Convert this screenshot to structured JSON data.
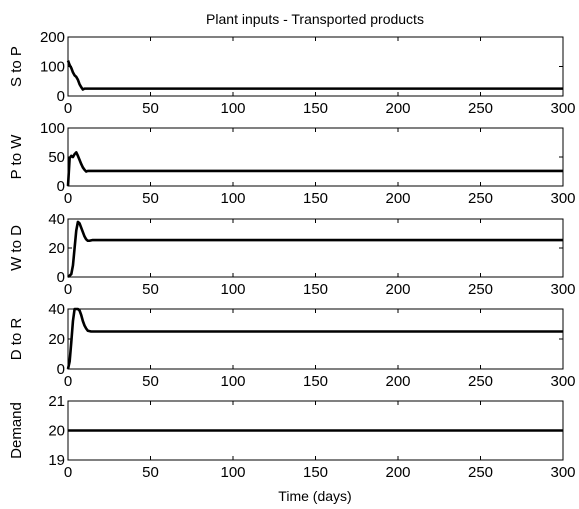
{
  "figure": {
    "title": "Plant inputs - Transported products",
    "xlabel": "Time (days)"
  },
  "chart_data": [
    {
      "type": "line",
      "title": "Plant inputs - Transported products",
      "xlabel": "",
      "ylabel": "S to P",
      "xlim": [
        0,
        300
      ],
      "ylim": [
        0,
        200
      ],
      "xticks": [
        0,
        50,
        100,
        150,
        200,
        250,
        300
      ],
      "yticks": [
        0,
        100,
        200
      ],
      "grid": false,
      "series": [
        {
          "x": [
            0,
            1,
            2,
            3,
            4,
            5,
            6,
            7,
            8,
            9,
            10,
            12,
            15,
            20,
            300
          ],
          "y": [
            120,
            105,
            95,
            80,
            70,
            65,
            55,
            40,
            30,
            22,
            25,
            25,
            25,
            25,
            25
          ]
        }
      ]
    },
    {
      "type": "line",
      "xlabel": "",
      "ylabel": "P to W",
      "xlim": [
        0,
        300
      ],
      "ylim": [
        0,
        100
      ],
      "xticks": [
        0,
        50,
        100,
        150,
        200,
        250,
        300
      ],
      "yticks": [
        0,
        50,
        100
      ],
      "grid": false,
      "series": [
        {
          "x": [
            0,
            1,
            2,
            3,
            4,
            5,
            6,
            7,
            8,
            9,
            10,
            11,
            12,
            14,
            20,
            300
          ],
          "y": [
            0,
            48,
            52,
            50,
            55,
            58,
            52,
            45,
            38,
            32,
            28,
            25,
            26,
            26,
            26,
            26
          ]
        }
      ]
    },
    {
      "type": "line",
      "xlabel": "",
      "ylabel": "W to D",
      "xlim": [
        0,
        300
      ],
      "ylim": [
        0,
        40
      ],
      "xticks": [
        0,
        50,
        100,
        150,
        200,
        250,
        300
      ],
      "yticks": [
        0,
        20,
        40
      ],
      "grid": false,
      "series": [
        {
          "x": [
            0,
            2,
            3,
            4,
            5,
            6,
            7,
            8,
            9,
            10,
            11,
            12,
            13,
            15,
            20,
            300
          ],
          "y": [
            0,
            2,
            8,
            20,
            32,
            38,
            37,
            34,
            31,
            28,
            26,
            25,
            25,
            25.5,
            25.5,
            25.5
          ]
        }
      ]
    },
    {
      "type": "line",
      "xlabel": "",
      "ylabel": "D to R",
      "xlim": [
        0,
        300
      ],
      "ylim": [
        0,
        40
      ],
      "xticks": [
        0,
        50,
        100,
        150,
        200,
        250,
        300
      ],
      "yticks": [
        0,
        20,
        40
      ],
      "grid": false,
      "series": [
        {
          "x": [
            0,
            1,
            2,
            3,
            4,
            5,
            6,
            7,
            8,
            9,
            10,
            11,
            12,
            14,
            20,
            300
          ],
          "y": [
            0,
            5,
            18,
            32,
            40,
            40,
            40,
            39,
            36,
            32,
            29,
            27,
            25.5,
            25,
            25,
            25
          ]
        }
      ]
    },
    {
      "type": "line",
      "xlabel": "Time (days)",
      "ylabel": "Demand",
      "xlim": [
        0,
        300
      ],
      "ylim": [
        19,
        21
      ],
      "xticks": [
        0,
        50,
        100,
        150,
        200,
        250,
        300
      ],
      "yticks": [
        19,
        20,
        21
      ],
      "grid": false,
      "series": [
        {
          "x": [
            0,
            300
          ],
          "y": [
            20,
            20
          ]
        }
      ]
    }
  ]
}
